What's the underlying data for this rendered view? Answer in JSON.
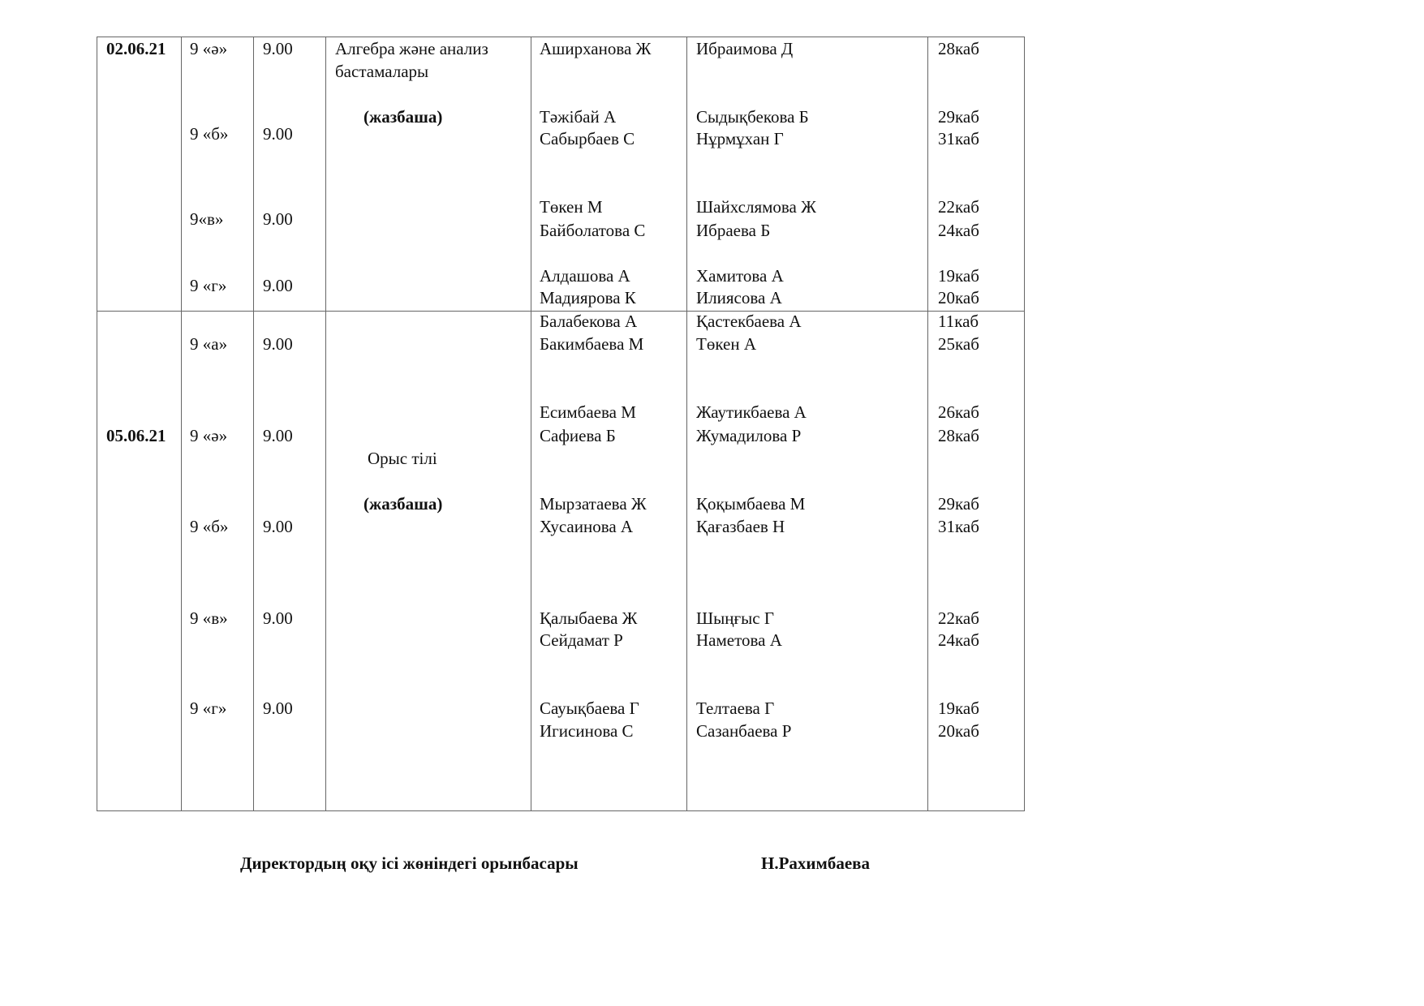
{
  "sessions": [
    {
      "date": "02.06.21",
      "subject_lines": [
        "Алгебра және анализ",
        "бастамалары"
      ],
      "format": "(жазбаша)",
      "groups": [
        {
          "class": "9 «ә»",
          "time": "9.00",
          "students": [
            "Аширханова Ж"
          ],
          "teachers": [
            "Ибраимова Д"
          ],
          "rooms": [
            "28каб"
          ]
        },
        {
          "class": "9 «б»",
          "time": "9.00",
          "students": [
            "Тәжібай А",
            "Сабырбаев С"
          ],
          "teachers": [
            "Сыдықбекова Б",
            "Нұрмұхан Г"
          ],
          "rooms": [
            "29каб",
            "31каб"
          ]
        },
        {
          "class": "9«в»",
          "time": "9.00",
          "students": [
            "Төкен М",
            "Байболатова С"
          ],
          "teachers": [
            "Шайхслямова Ж",
            "Ибраева Б"
          ],
          "rooms": [
            "22каб",
            "24каб"
          ]
        },
        {
          "class": "9 «г»",
          "time": "9.00",
          "students": [
            "Алдашова А",
            "Мадиярова К"
          ],
          "teachers": [
            "Хамитова А",
            "Илиясова А"
          ],
          "rooms": [
            "19каб",
            "20каб"
          ]
        }
      ]
    },
    {
      "date": "05.06.21",
      "subject_lines": [
        "Орыс тілі"
      ],
      "format": "(жазбаша)",
      "groups": [
        {
          "class": "9 «а»",
          "time": "9.00",
          "students": [
            "Балабекова А",
            "Бакимбаева М"
          ],
          "teachers": [
            "Қастекбаева А",
            "Төкен А"
          ],
          "rooms": [
            "11каб",
            "25каб"
          ]
        },
        {
          "class": "9 «ә»",
          "time": "9.00",
          "students": [
            "Есимбаева М",
            "Сафиева Б"
          ],
          "teachers": [
            "Жаутикбаева А",
            "Жумадилова Р"
          ],
          "rooms": [
            "26каб",
            "28каб"
          ]
        },
        {
          "class": "9 «б»",
          "time": "9.00",
          "students": [
            "Мырзатаева Ж",
            "Хусаинова А"
          ],
          "teachers": [
            "Қоқымбаева М",
            "Қағазбаев Н"
          ],
          "rooms": [
            "29каб",
            "31каб"
          ]
        },
        {
          "class": "9 «в»",
          "time": "9.00",
          "students": [
            "Қалыбаева Ж",
            "Сейдамат Р"
          ],
          "teachers": [
            "Шыңғыс Г",
            "Наметова А"
          ],
          "rooms": [
            "22каб",
            "24каб"
          ]
        },
        {
          "class": "9 «г»",
          "time": "9.00",
          "students": [
            "Сауықбаева Г",
            "Игисинова С"
          ],
          "teachers": [
            "Телтаева Г",
            "Сазанбаева Р"
          ],
          "rooms": [
            "19каб",
            "20каб"
          ]
        }
      ]
    }
  ],
  "footer": {
    "position": "Директордың оқу ісі жөніндегі орынбасары",
    "name": "Н.Рахимбаева"
  }
}
